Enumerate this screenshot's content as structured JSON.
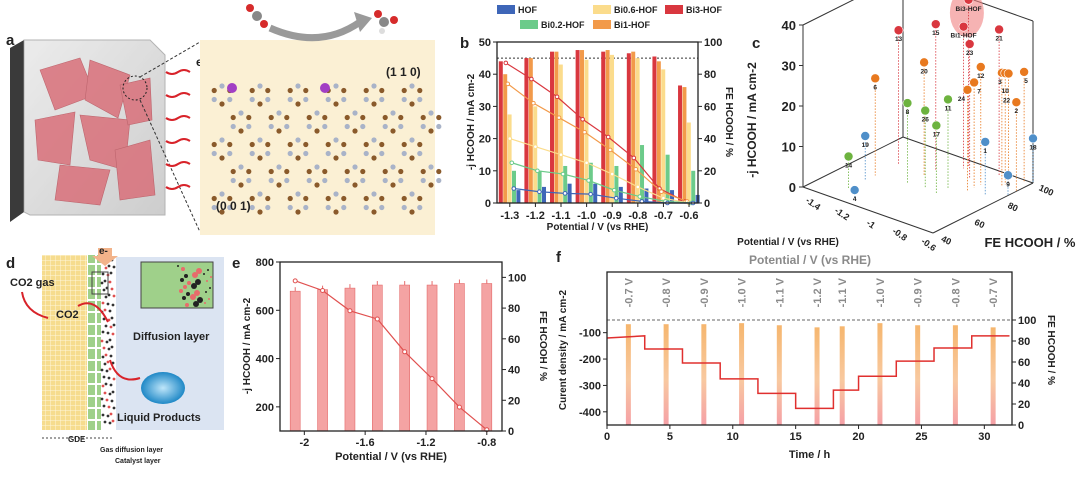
{
  "panels": {
    "a": {
      "letter": "a",
      "electron": "e-",
      "facet_top": "(1 1 0)",
      "facet_bottom": "(0 0 1)"
    },
    "d": {
      "letter": "d",
      "co2_gas": "CO2 gas",
      "co2": "CO2",
      "electron": "e-",
      "diffusion_layer": "Diffusion layer",
      "liquid_products": "Liquid Products",
      "gde": "GDE",
      "gas_diffusion_layer": "Gas diffusion layer",
      "catalyst_layer": "Catalyst layer"
    }
  },
  "chart_data": [
    {
      "id": "b",
      "letter": "b",
      "type": "bar",
      "xlabel": "Potential / V (vs RHE)",
      "ylabel": "-j HCOOH / mA cm-2",
      "y2label": "FE HCOOH / %",
      "categories": [
        "-1.3",
        "-1.2",
        "-1.1",
        "-1.0",
        "-0.9",
        "-0.8",
        "-0.7",
        "-0.6"
      ],
      "x": [
        -1.3,
        -1.2,
        -1.1,
        -1.0,
        -0.9,
        -0.8,
        -0.7,
        -0.6
      ],
      "xlim": [
        -1.35,
        -0.565
      ],
      "ylim": [
        0,
        50
      ],
      "y2lim": [
        0,
        100
      ],
      "yticks": [
        0,
        10,
        20,
        30,
        40,
        50
      ],
      "y2ticks": [
        0,
        20,
        40,
        60,
        80,
        100
      ],
      "reference_FE": 90,
      "series": [
        {
          "name": "Bi3-HOF",
          "color": "#d9373f",
          "j": [
            44,
            45,
            47,
            47.5,
            47,
            46.5,
            45.5,
            36.5
          ],
          "FE": [
            87,
            77,
            66,
            52,
            41,
            28,
            9,
            1
          ]
        },
        {
          "name": "Bi1-HOF",
          "color": "#f29a4a",
          "j": [
            40,
            45,
            47,
            47.5,
            47.5,
            47,
            44,
            36
          ],
          "FE": [
            74,
            62,
            53,
            44,
            33,
            21,
            7,
            1
          ]
        },
        {
          "name": "Bi0.6-HOF",
          "color": "#fbdc8c",
          "j": [
            27.5,
            30,
            43,
            44.5,
            46,
            45,
            41.5,
            25
          ],
          "FE": [
            40,
            35,
            30,
            25,
            18,
            10,
            3,
            0
          ]
        },
        {
          "name": "Bi0.2-HOF",
          "color": "#6ccb8a",
          "j": [
            10,
            10,
            11.5,
            12.5,
            11.5,
            18,
            15,
            10
          ],
          "FE": [
            25,
            20,
            18,
            14,
            8,
            4,
            1,
            0
          ]
        },
        {
          "name": "HOF",
          "color": "#3e66b8",
          "j": [
            4,
            5,
            6,
            6,
            5,
            4.5,
            4,
            2.5
          ],
          "FE": [
            9,
            7,
            6,
            5.5,
            3,
            1,
            0,
            0
          ]
        }
      ]
    },
    {
      "id": "c",
      "letter": "c",
      "type": "scatter",
      "xlabel": "Potential / V (vs RHE)",
      "ylabel": "FE HCOOH / %",
      "zlabel": "-j HCOOH / mA cm-2",
      "xlim": [
        -1.5,
        -0.6
      ],
      "ylim": [
        40,
        100
      ],
      "zlim": [
        0,
        40
      ],
      "xticks": [
        -1.4,
        -1.2,
        -1.0,
        -0.8,
        -0.6
      ],
      "yticks": [
        40,
        60,
        80,
        100
      ],
      "zticks": [
        0,
        10,
        20,
        30,
        40
      ],
      "highlight": "Bi3-HOF",
      "points": [
        {
          "label": "Bi3-HOF",
          "x": -1.0,
          "y": 96,
          "z": 41,
          "color": "#d9373f"
        },
        {
          "label": "Bi1-HOF",
          "x": -1.0,
          "y": 93,
          "z": 35,
          "color": "#d9373f"
        },
        {
          "label": "15",
          "x": -1.1,
          "y": 85,
          "z": 36,
          "color": "#d9373f"
        },
        {
          "label": "13",
          "x": -1.3,
          "y": 80,
          "z": 33,
          "color": "#d9373f"
        },
        {
          "label": "23",
          "x": -0.9,
          "y": 88,
          "z": 33,
          "color": "#d9373f"
        },
        {
          "label": "21",
          "x": -0.8,
          "y": 97,
          "z": 36,
          "color": "#d9373f"
        },
        {
          "label": "12",
          "x": -0.8,
          "y": 86,
          "z": 29,
          "color": "#e8791f"
        },
        {
          "label": "20",
          "x": -1.1,
          "y": 78,
          "z": 28,
          "color": "#e8791f"
        },
        {
          "label": "6",
          "x": -1.3,
          "y": 66,
          "z": 24,
          "color": "#e8791f"
        },
        {
          "label": "24",
          "x": -0.8,
          "y": 78,
          "z": 25,
          "color": "#e8791f"
        },
        {
          "label": "7",
          "x": -0.8,
          "y": 82,
          "z": 26,
          "color": "#e8791f"
        },
        {
          "label": "3",
          "x": -0.7,
          "y": 90,
          "z": 28,
          "color": "#e8791f"
        },
        {
          "label": "10",
          "x": -0.7,
          "y": 92,
          "z": 27.5,
          "color": "#e8791f"
        },
        {
          "label": "22",
          "x": -0.7,
          "y": 94,
          "z": 27,
          "color": "#e8791f"
        },
        {
          "label": "5",
          "x": -0.65,
          "y": 99,
          "z": 27,
          "color": "#e8791f"
        },
        {
          "label": "2",
          "x": -0.6,
          "y": 90,
          "z": 22,
          "color": "#e8791f"
        },
        {
          "label": "11",
          "x": -0.9,
          "y": 75,
          "z": 22,
          "color": "#6db33f"
        },
        {
          "label": "8",
          "x": -1.1,
          "y": 68,
          "z": 20,
          "color": "#6db33f"
        },
        {
          "label": "26",
          "x": -1.0,
          "y": 70,
          "z": 19,
          "color": "#6db33f"
        },
        {
          "label": "17",
          "x": -0.9,
          "y": 68,
          "z": 17,
          "color": "#6db33f"
        },
        {
          "label": "14",
          "x": -1.3,
          "y": 50,
          "z": 8,
          "color": "#6db33f"
        },
        {
          "label": "19",
          "x": -1.3,
          "y": 60,
          "z": 11,
          "color": "#4f8fc9"
        },
        {
          "label": "1",
          "x": -0.7,
          "y": 80,
          "z": 13,
          "color": "#4f8fc9"
        },
        {
          "label": "18",
          "x": -0.6,
          "y": 100,
          "z": 11,
          "color": "#4f8fc9"
        },
        {
          "label": "9",
          "x": -0.6,
          "y": 85,
          "z": 5,
          "color": "#4f8fc9"
        },
        {
          "label": "4",
          "x": -1.2,
          "y": 45,
          "z": 2,
          "color": "#4f8fc9"
        }
      ]
    },
    {
      "id": "e",
      "letter": "e",
      "type": "bar",
      "xlabel": "Potential / V (vs RHE)",
      "ylabel": "-j HCOOH / mA cm-2",
      "y2label": "FE HCOOH / %",
      "x": [
        -2.06,
        -1.88,
        -1.7,
        -1.52,
        -1.34,
        -1.16,
        -0.98,
        -0.8
      ],
      "xlim": [
        -2.16,
        -0.7
      ],
      "ylim": [
        100,
        800
      ],
      "y2lim": [
        0,
        110
      ],
      "xticks": [
        -2.0,
        -1.6,
        -1.2,
        -0.8
      ],
      "yticks": [
        200,
        400,
        600,
        800
      ],
      "y2ticks": [
        0,
        20,
        40,
        60,
        80,
        100
      ],
      "series": [
        {
          "name": "FE HCOOH",
          "color": "#f4a3a3",
          "values": [
            91,
            92,
            93,
            95,
            95,
            95,
            96,
            96
          ]
        },
        {
          "name": "-j HCOOH",
          "color": "#e0504f",
          "values": [
            722,
            682,
            598,
            564,
            428,
            317,
            199,
            105
          ]
        }
      ]
    },
    {
      "id": "f",
      "letter": "f",
      "type": "line",
      "title": "Potential / V (vs RHE)",
      "xlabel": "Time / h",
      "ylabel": "Curent density / mA cm-2",
      "y2label": "FE HCOOH / %",
      "xlim": [
        0,
        32.2
      ],
      "ylim": [
        -450,
        130
      ],
      "y2lim": [
        0,
        100
      ],
      "xticks": [
        0,
        5,
        10,
        15,
        20,
        25,
        30
      ],
      "yticks": [
        -100,
        -200,
        -300,
        -400
      ],
      "y2ticks": [
        0,
        20,
        40,
        60,
        80,
        100
      ],
      "steps": [
        {
          "t0": 0,
          "t1": 3,
          "j": -112,
          "potential": "-0.7 V",
          "t_FE": 1.7,
          "FE": 96
        },
        {
          "t0": 3,
          "t1": 6,
          "j": -162,
          "potential": "-0.8 V",
          "t_FE": 4.7,
          "FE": 96
        },
        {
          "t0": 6,
          "t1": 9,
          "j": -215,
          "potential": "-0.9 V",
          "t_FE": 7.7,
          "FE": 96
        },
        {
          "t0": 9,
          "t1": 12,
          "j": -275,
          "potential": "-1.0 V",
          "t_FE": 10.7,
          "FE": 97
        },
        {
          "t0": 12,
          "t1": 15,
          "j": -330,
          "potential": "-1.1 V",
          "t_FE": 13.7,
          "FE": 95
        },
        {
          "t0": 15,
          "t1": 18,
          "j": -387,
          "potential": "-1.2 V",
          "t_FE": 16.7,
          "FE": 93
        },
        {
          "t0": 18,
          "t1": 20,
          "j": -318,
          "potential": "-1.1 V",
          "t_FE": 18.7,
          "FE": 94
        },
        {
          "t0": 20,
          "t1": 23,
          "j": -265,
          "potential": "-1.0 V",
          "t_FE": 21.7,
          "FE": 97
        },
        {
          "t0": 23,
          "t1": 26,
          "j": -208,
          "potential": "-0.9 V",
          "t_FE": 24.7,
          "FE": 95
        },
        {
          "t0": 26,
          "t1": 29,
          "j": -158,
          "potential": "-0.8 V",
          "t_FE": 27.7,
          "FE": 95
        },
        {
          "t0": 29,
          "t1": 32,
          "j": -112,
          "potential": "-0.7 V",
          "t_FE": 30.7,
          "FE": 93
        }
      ]
    }
  ]
}
